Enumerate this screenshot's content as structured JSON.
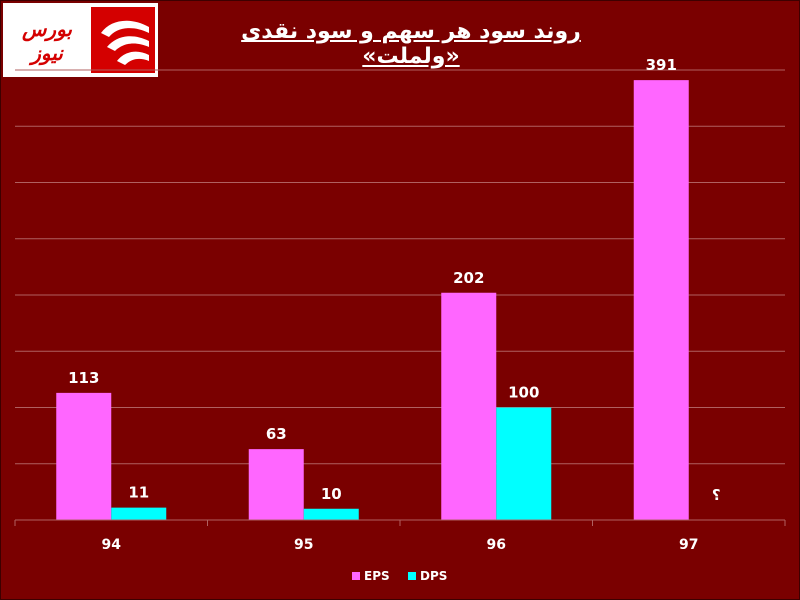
{
  "header": {
    "title": "روند سود هر سهم و سود نقدی «ولملت»",
    "logo_text": "بورس نیوز"
  },
  "colors": {
    "background": "#7a0000",
    "eps": "#ff66ff",
    "dps": "#00ffff",
    "grid": "#b06060"
  },
  "chart_data": {
    "type": "bar",
    "title": "روند سود هر سهم و سود نقدی «ولملت»",
    "categories": [
      "94",
      "95",
      "96",
      "97"
    ],
    "series": [
      {
        "name": "EPS",
        "values": [
          113,
          63,
          202,
          391
        ],
        "labels": [
          "113",
          "63",
          "202",
          "391"
        ]
      },
      {
        "name": "DPS",
        "values": [
          11,
          10,
          100,
          null
        ],
        "labels": [
          "11",
          "10",
          "100",
          "؟"
        ]
      }
    ],
    "ylim": [
      0,
      400
    ],
    "grid": true,
    "legend": "bottom"
  }
}
